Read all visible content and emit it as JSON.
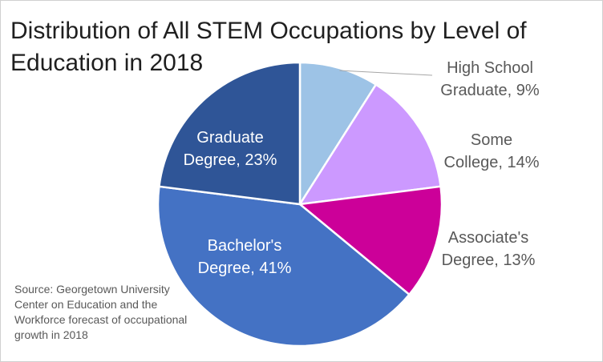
{
  "chart_data": {
    "type": "pie",
    "title": "Distribution of All STEM Occupations by Level of Education in 2018",
    "source": "Source: Georgetown University Center on Education and the Workforce forecast of occupational growth in 2018",
    "slices": [
      {
        "label_lines": [
          "High School",
          "Graduate, 9%"
        ],
        "category": "High School Graduate",
        "value": 9,
        "color": "#9dc3e6",
        "label_color": "#595959"
      },
      {
        "label_lines": [
          "Some",
          "College, 14%"
        ],
        "category": "Some College",
        "value": 14,
        "color": "#cc99ff",
        "label_color": "#595959"
      },
      {
        "label_lines": [
          "Associate's",
          "Degree, 13%"
        ],
        "category": "Associate's Degree",
        "value": 13,
        "color": "#cc0099",
        "label_color": "#595959"
      },
      {
        "label_lines": [
          "Bachelor's",
          "Degree, 41%"
        ],
        "category": "Bachelor's Degree",
        "value": 41,
        "color": "#4472c4",
        "label_color": "#ffffff"
      },
      {
        "label_lines": [
          "Graduate",
          "Degree, 23%"
        ],
        "category": "Graduate Degree",
        "value": 23,
        "color": "#2f5597",
        "label_color": "#ffffff"
      }
    ]
  }
}
